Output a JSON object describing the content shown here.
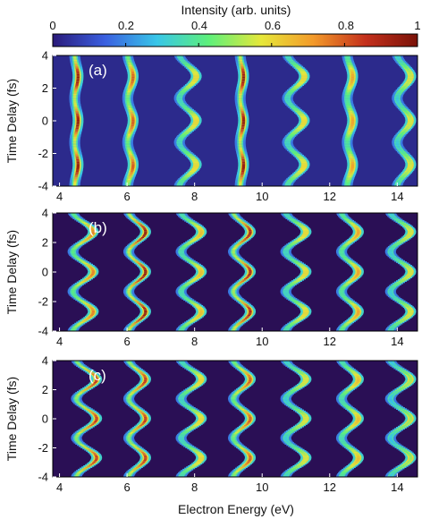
{
  "colorbar": {
    "label": "Intensity (arb. units)",
    "range": [
      0,
      1
    ],
    "tick_values": [
      0,
      0.2,
      0.4,
      0.6,
      0.8,
      1
    ],
    "tick_labels": [
      "0",
      "0.2",
      "0.4",
      "0.6",
      "0.8",
      "1"
    ],
    "colors": [
      "#2a1a7a",
      "#3a5fe0",
      "#38c6e8",
      "#5ef07a",
      "#e6e83a",
      "#f39a2a",
      "#c4301c",
      "#7a1208"
    ]
  },
  "chart_data": [
    {
      "type": "heatmap",
      "panel_label": "(a)",
      "ylabel": "Time Delay (fs)",
      "xlabel": "",
      "xlim": [
        3.8,
        14.6
      ],
      "ylim": [
        -4,
        4
      ],
      "x_ticks": [
        4,
        6,
        8,
        10,
        12,
        14
      ],
      "y_ticks": [
        -4,
        -2,
        0,
        2,
        4
      ],
      "x_tick_labels": [
        "4",
        "6",
        "8",
        "10",
        "12",
        "14"
      ],
      "y_tick_labels": [
        "-4",
        "-2",
        "0",
        "2",
        "4"
      ],
      "bands": [
        {
          "center_eV": 4.5,
          "peak": 0.95,
          "oscillation_eV": 0.05
        },
        {
          "center_eV": 6.1,
          "peak": 0.8,
          "oscillation_eV": 0.08
        },
        {
          "center_eV": 7.8,
          "peak": 0.6,
          "oscillation_eV": 0.25
        },
        {
          "center_eV": 9.4,
          "peak": 0.95,
          "oscillation_eV": 0.05
        },
        {
          "center_eV": 11.0,
          "peak": 0.6,
          "oscillation_eV": 0.25
        },
        {
          "center_eV": 12.6,
          "peak": 0.7,
          "oscillation_eV": 0.08
        },
        {
          "center_eV": 14.2,
          "peak": 0.55,
          "oscillation_eV": 0.2
        }
      ]
    },
    {
      "type": "heatmap",
      "panel_label": "(b)",
      "ylabel": "Time Delay (fs)",
      "xlabel": "",
      "xlim": [
        3.8,
        14.6
      ],
      "ylim": [
        -4,
        4
      ],
      "x_ticks": [
        4,
        6,
        8,
        10,
        12,
        14
      ],
      "y_ticks": [
        -4,
        -2,
        0,
        2,
        4
      ],
      "x_tick_labels": [
        "4",
        "6",
        "8",
        "10",
        "12",
        "14"
      ],
      "y_tick_labels": [
        "-4",
        "-2",
        "0",
        "2",
        "4"
      ],
      "bands": [
        {
          "center_eV": 4.7,
          "peak": 0.75,
          "oscillation_eV": 0.3
        },
        {
          "center_eV": 6.3,
          "peak": 0.95,
          "oscillation_eV": 0.25
        },
        {
          "center_eV": 7.9,
          "peak": 0.65,
          "oscillation_eV": 0.3
        },
        {
          "center_eV": 9.4,
          "peak": 0.9,
          "oscillation_eV": 0.25
        },
        {
          "center_eV": 11.0,
          "peak": 0.6,
          "oscillation_eV": 0.3
        },
        {
          "center_eV": 12.6,
          "peak": 0.7,
          "oscillation_eV": 0.25
        },
        {
          "center_eV": 14.1,
          "peak": 0.55,
          "oscillation_eV": 0.3
        }
      ]
    },
    {
      "type": "heatmap",
      "panel_label": "(c)",
      "ylabel": "Time Delay (fs)",
      "xlabel": "Electron Energy (eV)",
      "xlim": [
        3.8,
        14.6
      ],
      "ylim": [
        -4,
        4
      ],
      "x_ticks": [
        4,
        6,
        8,
        10,
        12,
        14
      ],
      "y_ticks": [
        -4,
        -2,
        0,
        2,
        4
      ],
      "x_tick_labels": [
        "4",
        "6",
        "8",
        "10",
        "12",
        "14"
      ],
      "y_tick_labels": [
        "-4",
        "-2",
        "0",
        "2",
        "4"
      ],
      "bands": [
        {
          "center_eV": 4.8,
          "peak": 0.85,
          "oscillation_eV": 0.3
        },
        {
          "center_eV": 6.3,
          "peak": 0.85,
          "oscillation_eV": 0.25
        },
        {
          "center_eV": 7.9,
          "peak": 0.6,
          "oscillation_eV": 0.3
        },
        {
          "center_eV": 9.4,
          "peak": 0.8,
          "oscillation_eV": 0.25
        },
        {
          "center_eV": 11.0,
          "peak": 0.55,
          "oscillation_eV": 0.3
        },
        {
          "center_eV": 12.6,
          "peak": 0.65,
          "oscillation_eV": 0.25
        },
        {
          "center_eV": 14.1,
          "peak": 0.5,
          "oscillation_eV": 0.3
        }
      ]
    }
  ]
}
